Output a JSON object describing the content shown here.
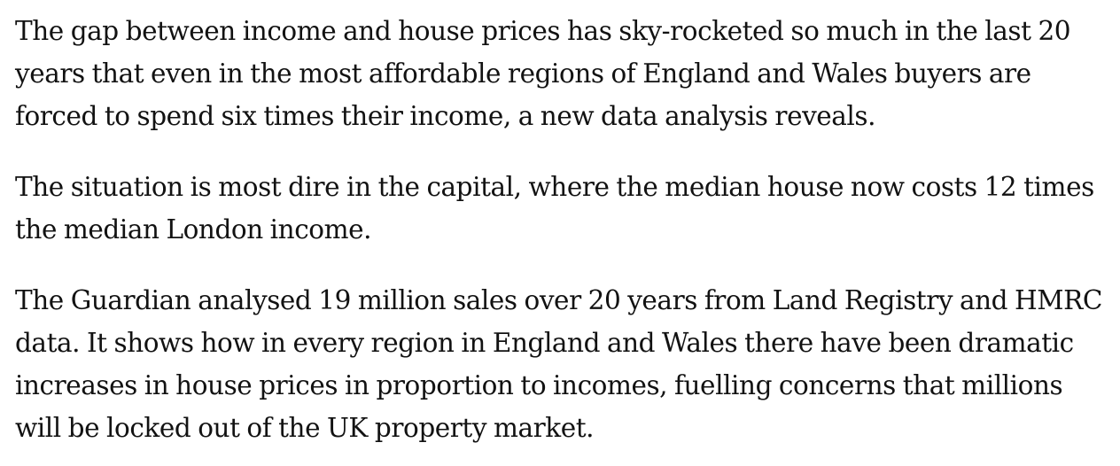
{
  "article": {
    "paragraphs": [
      "The gap between income and house prices has sky-rocketed so much in the last 20 years that even in the most affordable regions of England and Wales buyers are forced to spend six times their income, a new data analysis reveals.",
      "The situation is most dire in the capital, where the median house now costs 12 times the median London income.",
      "The Guardian analysed 19 million sales over 20 years from Land Registry and HMRC data. It shows how in every region in England and Wales there have been dramatic increases in house prices in proportion to incomes, fuelling concerns that millions will be locked out of the UK property market."
    ],
    "text_color": "#121212",
    "background_color": "#ffffff"
  }
}
